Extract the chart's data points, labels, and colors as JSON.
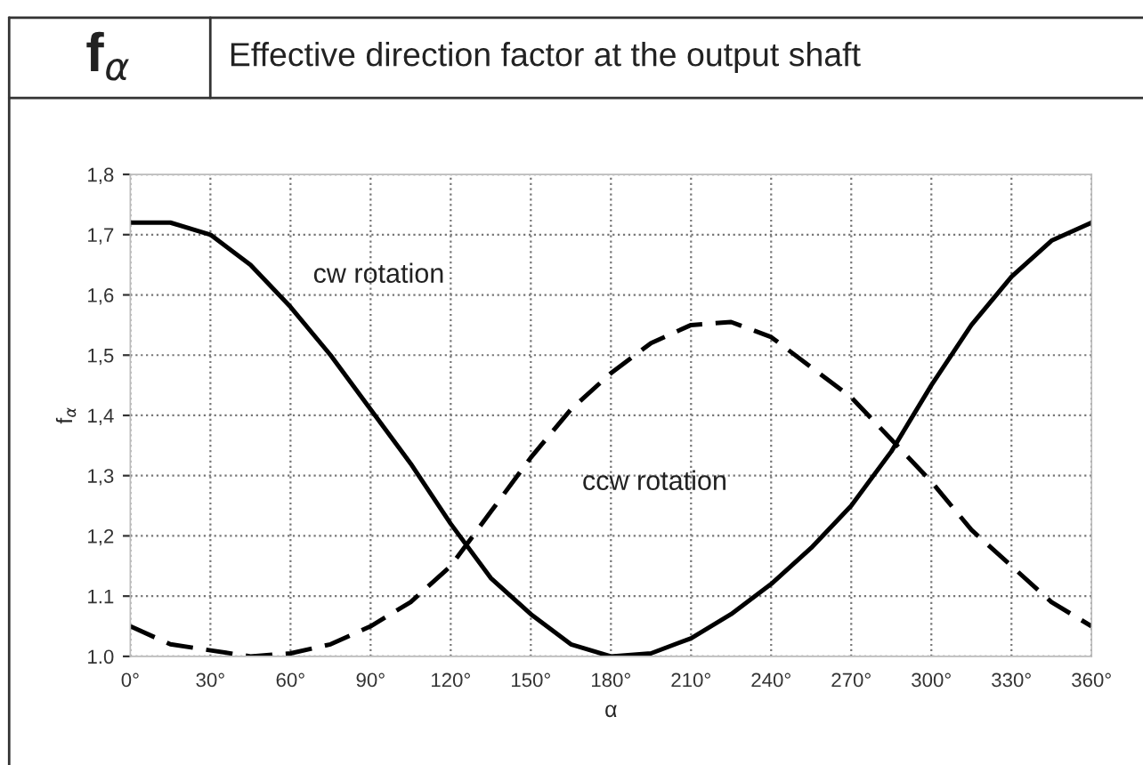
{
  "chart_data": {
    "type": "line",
    "title": "Effective direction factor at the output shaft",
    "annotations": [
      "f$_{α}$"
    ],
    "xlabel": "α",
    "ylabel": "f$_{α}$",
    "x": [
      0,
      15,
      30,
      45,
      60,
      75,
      90,
      105,
      120,
      135,
      150,
      165,
      180,
      195,
      210,
      225,
      240,
      255,
      270,
      285,
      300,
      315,
      330,
      345,
      360
    ],
    "series": [
      {
        "name": "cw rotation",
        "color": "#000000",
        "line_style": "solid",
        "values": [
          1.72,
          1.72,
          1.7,
          1.65,
          1.58,
          1.5,
          1.41,
          1.32,
          1.22,
          1.13,
          1.07,
          1.02,
          1.0,
          1.005,
          1.03,
          1.07,
          1.12,
          1.18,
          1.25,
          1.34,
          1.45,
          1.55,
          1.63,
          1.69,
          1.72
        ]
      },
      {
        "name": "ccw rotation",
        "color": "#000000",
        "line_style": "dashed",
        "values": [
          1.05,
          1.02,
          1.01,
          1.0,
          1.005,
          1.02,
          1.05,
          1.09,
          1.15,
          1.24,
          1.33,
          1.41,
          1.47,
          1.52,
          1.55,
          1.555,
          1.53,
          1.48,
          1.43,
          1.36,
          1.29,
          1.21,
          1.15,
          1.09,
          1.05
        ]
      }
    ],
    "xlim": [
      0,
      360
    ],
    "ylim": [
      1.0,
      1.8
    ],
    "xticks": [
      {
        "value": 0,
        "label": "0°"
      },
      {
        "value": 30,
        "label": "30°"
      },
      {
        "value": 60,
        "label": "60°"
      },
      {
        "value": 90,
        "label": "90°"
      },
      {
        "value": 120,
        "label": "120°"
      },
      {
        "value": 150,
        "label": "150°"
      },
      {
        "value": 180,
        "label": "180°"
      },
      {
        "value": 210,
        "label": "210°"
      },
      {
        "value": 240,
        "label": "240°"
      },
      {
        "value": 270,
        "label": "270°"
      },
      {
        "value": 300,
        "label": "300°"
      },
      {
        "value": 330,
        "label": "330°"
      },
      {
        "value": 360,
        "label": "360°"
      }
    ],
    "yticks": [
      {
        "value": 1.0,
        "label": "1.0"
      },
      {
        "value": 1.1,
        "label": "1.1"
      },
      {
        "value": 1.2,
        "label": "1,2"
      },
      {
        "value": 1.3,
        "label": "1,3"
      },
      {
        "value": 1.4,
        "label": "1,4"
      },
      {
        "value": 1.5,
        "label": "1,5"
      },
      {
        "value": 1.6,
        "label": "1,6"
      },
      {
        "value": 1.7,
        "label": "1,7"
      },
      {
        "value": 1.8,
        "label": "1,8"
      }
    ],
    "grid": true,
    "legend": false
  }
}
